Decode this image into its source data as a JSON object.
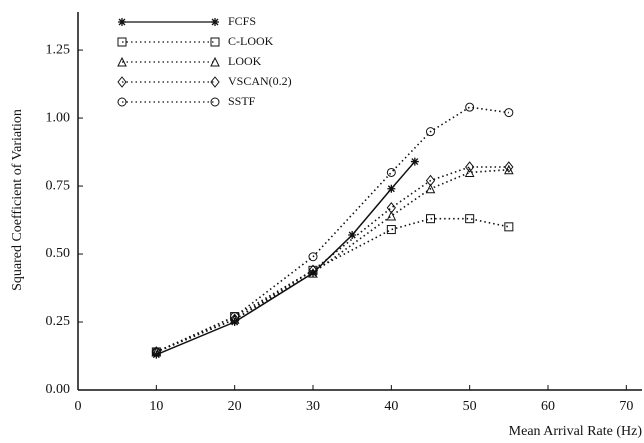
{
  "chart_data": {
    "type": "line",
    "x_label": "Mean Arrival Rate (Hz)",
    "y_label": "Squared Coefficient of Variation",
    "xlim": [
      0,
      72
    ],
    "ylim": [
      0,
      1.39
    ],
    "xticks": [
      0,
      10,
      20,
      30,
      40,
      50,
      60,
      70
    ],
    "yticks": [
      {
        "value": 0,
        "label": "0.00"
      },
      {
        "value": 0.25,
        "label": "0.25"
      },
      {
        "value": 0.5,
        "label": "0.50"
      },
      {
        "value": 0.75,
        "label": "0.75"
      },
      {
        "value": 1,
        "label": "1.00"
      },
      {
        "value": 1.25,
        "label": "1.25"
      }
    ],
    "legend": "upper left",
    "series": [
      {
        "name": "FCFS",
        "color": "#111111",
        "marker": "asterisk",
        "linestyle": "solid",
        "x": [
          10,
          20,
          30,
          35,
          40,
          43
        ],
        "values": [
          0.13,
          0.25,
          0.43,
          0.57,
          0.74,
          0.84
        ]
      },
      {
        "name": "C-LOOK",
        "color": "#111111",
        "marker": "square",
        "linestyle": "dotted",
        "x": [
          10,
          20,
          30,
          40,
          45,
          50,
          55
        ],
        "values": [
          0.14,
          0.27,
          0.44,
          0.59,
          0.63,
          0.63,
          0.6
        ]
      },
      {
        "name": "LOOK",
        "color": "#111111",
        "marker": "triangle",
        "linestyle": "dotted",
        "x": [
          10,
          20,
          30,
          40,
          45,
          50,
          55
        ],
        "values": [
          0.14,
          0.26,
          0.43,
          0.64,
          0.74,
          0.8,
          0.81
        ]
      },
      {
        "name": "VSCAN(0.2)",
        "color": "#111111",
        "marker": "diamond",
        "linestyle": "dotted",
        "x": [
          10,
          20,
          30,
          40,
          45,
          50,
          55
        ],
        "values": [
          0.14,
          0.26,
          0.44,
          0.67,
          0.77,
          0.82,
          0.82
        ]
      },
      {
        "name": "SSTF",
        "color": "#111111",
        "marker": "circle",
        "linestyle": "dotted",
        "x": [
          10,
          20,
          30,
          40,
          45,
          50,
          55
        ],
        "values": [
          0.14,
          0.27,
          0.49,
          0.8,
          0.95,
          1.04,
          1.02
        ]
      }
    ]
  }
}
